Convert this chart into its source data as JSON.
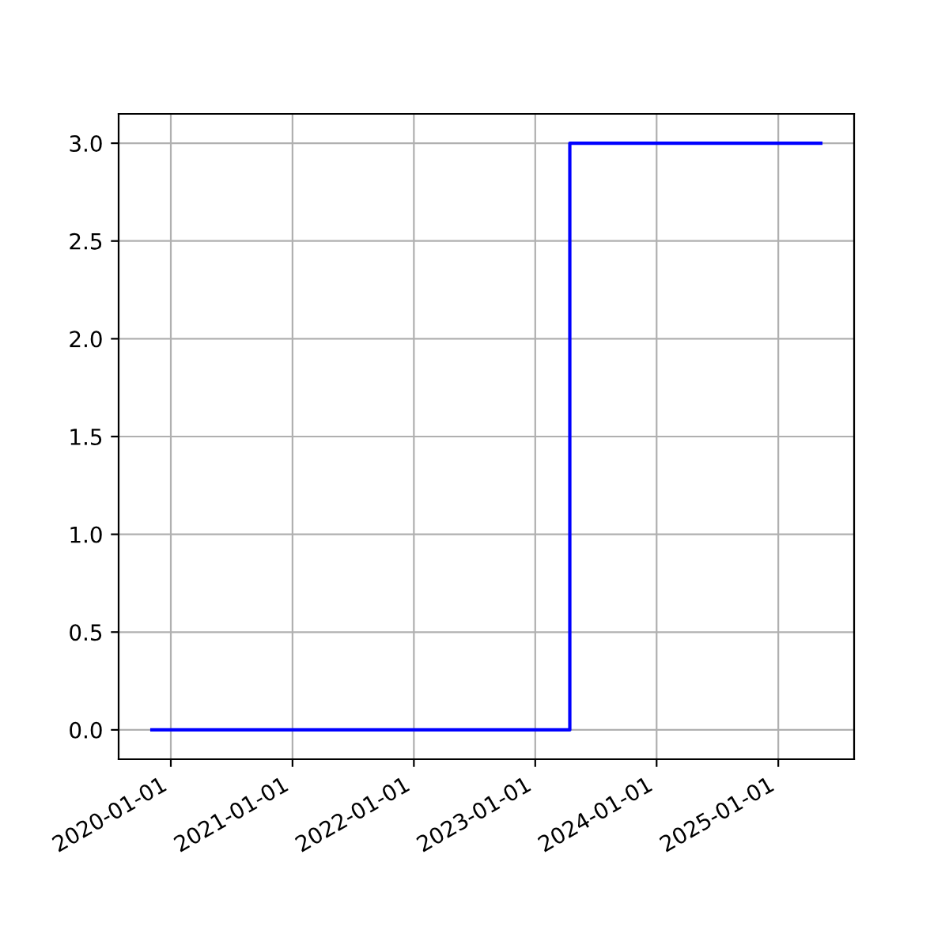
{
  "chart_data": {
    "type": "step",
    "x": [
      "2019-11-05",
      "2023-04-15",
      "2025-05-09"
    ],
    "series": [
      {
        "color": "#0000ff",
        "values": [
          0,
          3,
          3
        ]
      }
    ],
    "xlim": [
      "2019-07-28",
      "2025-08-17"
    ],
    "xticks": [
      "2020-01-01",
      "2021-01-01",
      "2022-01-01",
      "2023-01-01",
      "2024-01-01",
      "2025-01-01"
    ],
    "ylim": [
      -0.15,
      3.15
    ],
    "yticks": [
      {
        "value": 0,
        "label": "0.0"
      },
      0.5,
      {
        "value": 1,
        "label": "1.0"
      },
      1.5,
      {
        "value": 2,
        "label": "2.0"
      },
      2.5,
      {
        "value": 3,
        "label": "3.0"
      }
    ],
    "grid": true
  }
}
